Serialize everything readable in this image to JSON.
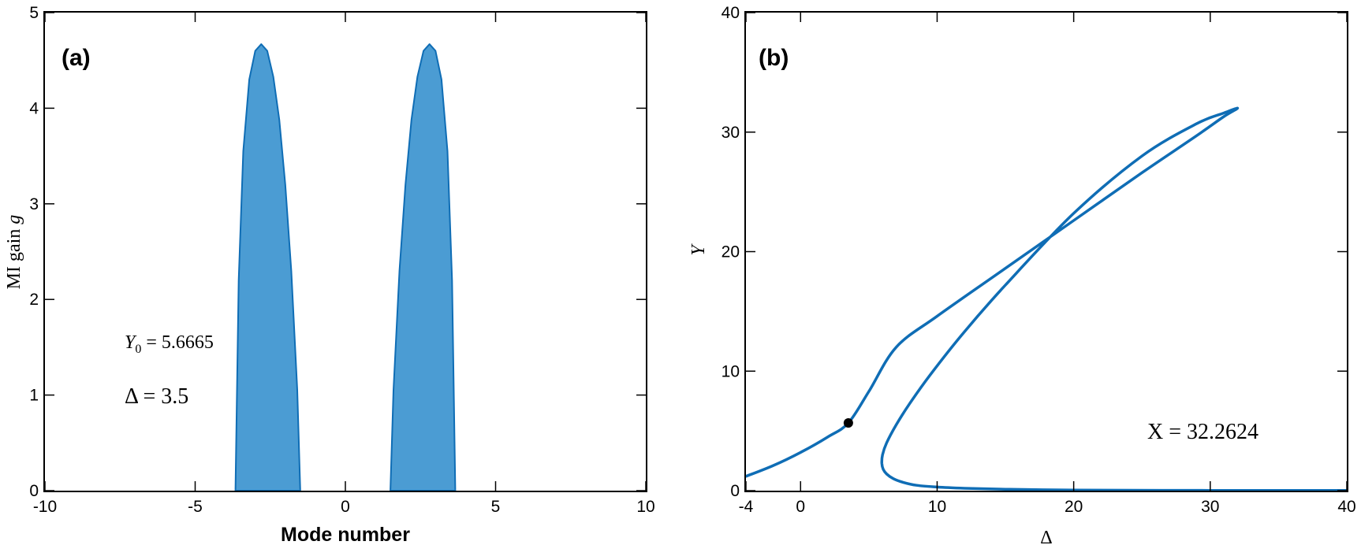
{
  "colors": {
    "fill": "#4b9cd3",
    "line": "#0f6db5",
    "marker": "#000000"
  },
  "chart_data": [
    {
      "type": "area",
      "panel_label": "(a)",
      "xlabel": "Mode number",
      "ylabel_main": "MI gain",
      "ylabel_var": "g",
      "xlim": [
        -10,
        10
      ],
      "ylim": [
        0,
        5
      ],
      "xticks": [
        -10,
        -5,
        0,
        5,
        10
      ],
      "yticks": [
        0,
        1,
        2,
        3,
        4,
        5
      ],
      "annotation_y0_sym": "Y",
      "annotation_y0_sub": "0",
      "annotation_y0_val": " = 5.6665",
      "annotation_delta": "Δ = 3.5",
      "lobes": [
        {
          "x": [
            -3.66,
            -3.55,
            -3.4,
            -3.2,
            -3.0,
            -2.8,
            -2.6,
            -2.4,
            -2.2,
            -2.0,
            -1.8,
            -1.6,
            -1.5
          ],
          "y": [
            0,
            2.2,
            3.55,
            4.3,
            4.6,
            4.67,
            4.6,
            4.33,
            3.88,
            3.2,
            2.3,
            1.05,
            0
          ]
        },
        {
          "x": [
            1.5,
            1.6,
            1.8,
            2.0,
            2.2,
            2.4,
            2.6,
            2.8,
            3.0,
            3.2,
            3.4,
            3.55,
            3.66
          ],
          "y": [
            0,
            1.05,
            2.3,
            3.2,
            3.88,
            4.33,
            4.6,
            4.67,
            4.6,
            4.3,
            3.55,
            2.2,
            0
          ]
        }
      ]
    },
    {
      "type": "line",
      "panel_label": "(b)",
      "xlabel": "Δ",
      "ylabel": "Y",
      "xlim": [
        -4,
        40
      ],
      "ylim": [
        0,
        40
      ],
      "xticks": [
        -4,
        0,
        10,
        20,
        30,
        40
      ],
      "yticks": [
        0,
        10,
        20,
        30,
        40
      ],
      "annotation": "X = 32.2624",
      "marker": {
        "x": 3.5,
        "y": 5.6665
      },
      "curve": {
        "x": [
          40,
          30,
          20,
          15,
          12,
          10,
          8.5,
          7.5,
          6.8,
          6.3,
          6.05,
          5.95,
          6.0,
          6.3,
          7.0,
          8.0,
          9.5,
          12.0,
          15.0,
          20.0,
          25.0,
          29.0,
          31.0,
          32.0,
          31.0,
          29.0,
          25.0,
          20.0,
          15.0,
          10.0,
          7.0,
          5.0,
          3.5,
          2.0,
          0.0,
          -2.0,
          -4.0
        ],
        "y": [
          0.01,
          0.02,
          0.05,
          0.12,
          0.2,
          0.3,
          0.45,
          0.7,
          1.0,
          1.4,
          1.8,
          2.3,
          3.0,
          4.0,
          5.5,
          7.3,
          9.7,
          13.3,
          17.2,
          23.2,
          28.0,
          30.7,
          31.6,
          32.0,
          31.3,
          29.7,
          26.6,
          22.6,
          18.6,
          14.6,
          12.0,
          8.3,
          5.6665,
          4.5,
          3.2,
          2.1,
          1.2
        ]
      }
    }
  ]
}
